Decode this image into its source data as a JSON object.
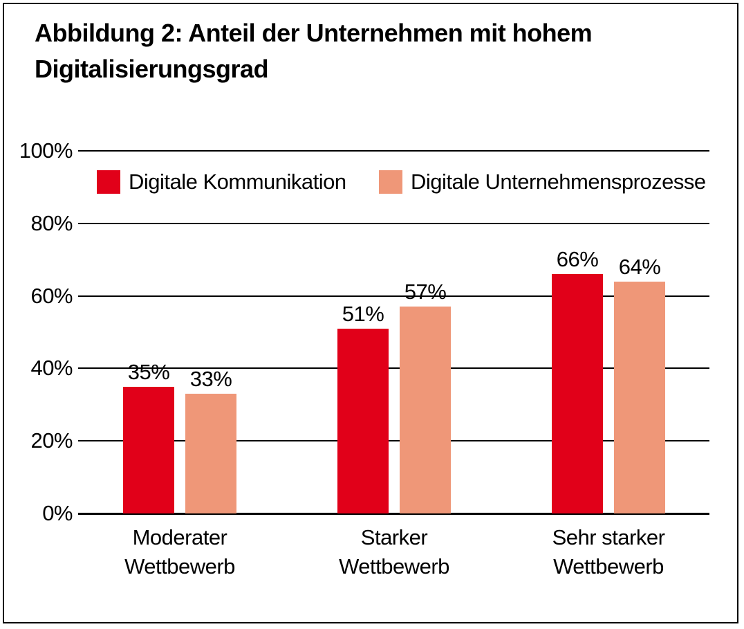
{
  "figure": {
    "title_line1": "Abbildung 2: Anteil der Unternehmen mit hohem",
    "title_line2": "Digitalisierungsgrad"
  },
  "chart_data": {
    "type": "bar",
    "title": "Abbildung 2: Anteil der Unternehmen mit hohem Digitalisierungsgrad",
    "categories": [
      [
        "Moderater",
        "Wettbewerb"
      ],
      [
        "Starker",
        "Wettbewerb"
      ],
      [
        "Sehr starker",
        "Wettbewerb"
      ]
    ],
    "series": [
      {
        "name": "Digitale Kommunikation",
        "color": "#e10019",
        "values": [
          35,
          51,
          66
        ]
      },
      {
        "name": "Digitale Unternehmensprozesse",
        "color": "#ef9778",
        "values": [
          33,
          57,
          64
        ]
      }
    ],
    "value_labels": [
      [
        "35%",
        "51%",
        "66%"
      ],
      [
        "33%",
        "57%",
        "64%"
      ]
    ],
    "ytick_labels": [
      "0%",
      "20%",
      "40%",
      "60%",
      "80%",
      "100%"
    ],
    "yticks": [
      0,
      20,
      40,
      60,
      80,
      100
    ],
    "ylim": [
      0,
      100
    ],
    "xlabel": "",
    "ylabel": "",
    "grid": true,
    "gridline_color": "#000000",
    "legend_position": "top-inside"
  }
}
